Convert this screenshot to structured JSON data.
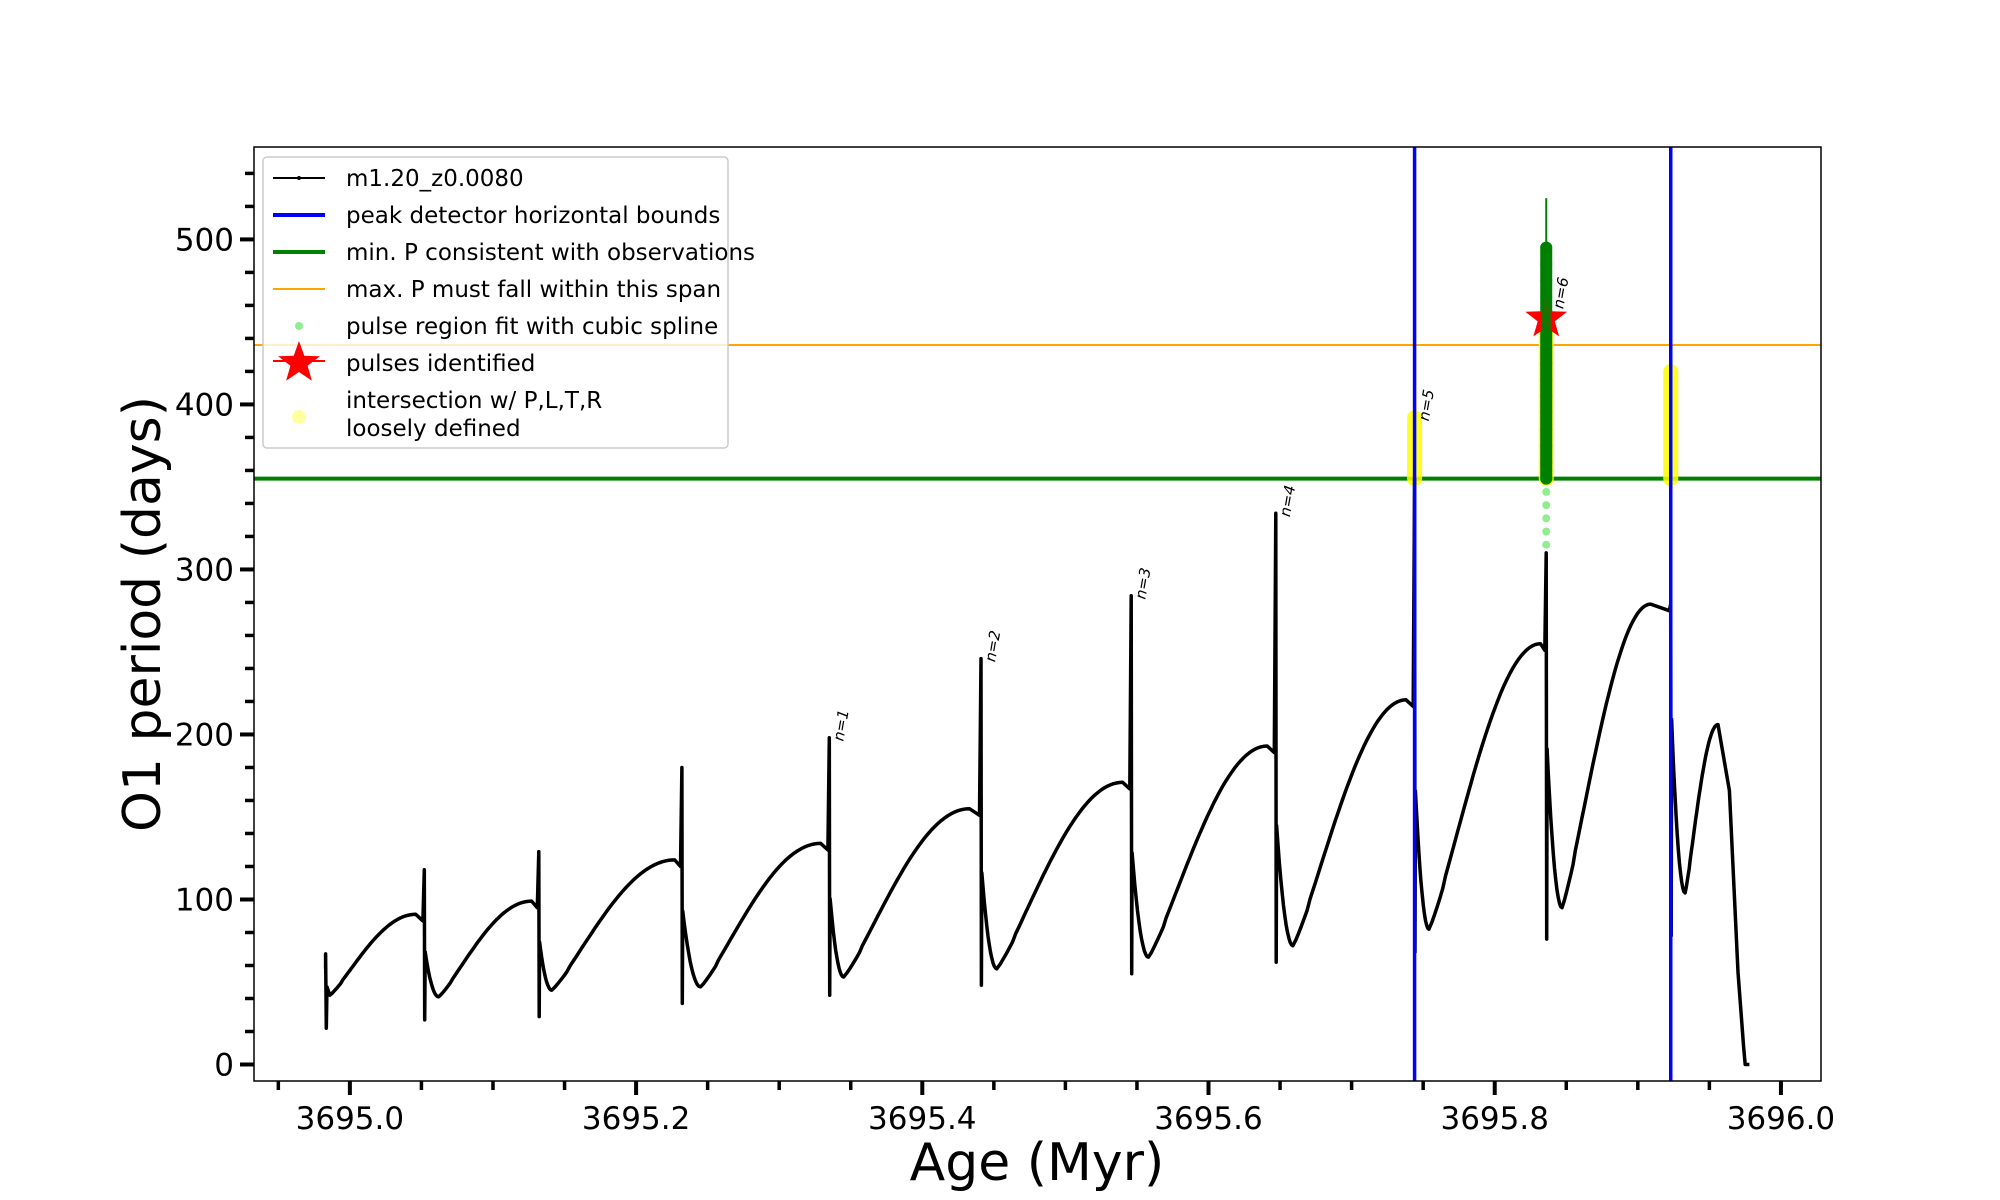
{
  "chart_data": {
    "type": "line",
    "title": "",
    "xlabel": "Age (Myr)",
    "ylabel": "O1 period (days)",
    "xlim": [
      3694.933,
      3696.028
    ],
    "ylim": [
      -10,
      556
    ],
    "xticks": [
      3695.0,
      3695.2,
      3695.4,
      3695.6,
      3695.8,
      3696.0
    ],
    "xtick_labels": [
      "3695.0",
      "3695.2",
      "3695.4",
      "3695.6",
      "3695.8",
      "3696.0"
    ],
    "xminor_step": 0.05,
    "yticks": [
      0,
      100,
      200,
      300,
      400,
      500
    ],
    "ytick_labels": [
      "0",
      "100",
      "200",
      "300",
      "400",
      "500"
    ],
    "yminor_step": 20,
    "grid": false,
    "legend_position": "top-left",
    "legend": [
      {
        "label": "m1.20_z0.0080",
        "kind": "line-dot",
        "color": "#000000"
      },
      {
        "label": "peak detector horizontal bounds",
        "kind": "line",
        "color": "#0000ff"
      },
      {
        "label": "min. P consistent with observations",
        "kind": "line",
        "color": "#008000"
      },
      {
        "label": "max. P must fall within this span",
        "kind": "thin-line",
        "color": "#ffa500"
      },
      {
        "label": "pulse region fit with cubic spline",
        "kind": "dot",
        "color": "#90ee90"
      },
      {
        "label": "pulses identified",
        "kind": "star",
        "color": "#ff0000"
      },
      {
        "label": "intersection w/ P,L,T,R",
        "label2": "loosely defined",
        "kind": "circle",
        "color": "#ffffa0"
      }
    ],
    "series_start": {
      "age": 3694.983,
      "P_start": 58,
      "spike_top": 67,
      "spike_bottom": 22,
      "min_age": 3694.986,
      "min_P": 42
    },
    "cycles": [
      {
        "peak_age": 3695.046,
        "peak_P": 91,
        "spike_age": 3695.052,
        "spike_top": 118,
        "spike_bottom": 27,
        "min_age": 3695.062,
        "min_P": 41
      },
      {
        "peak_age": 3695.127,
        "peak_P": 99,
        "spike_age": 3695.132,
        "spike_top": 129,
        "spike_bottom": 29,
        "min_age": 3695.141,
        "min_P": 45
      },
      {
        "peak_age": 3695.227,
        "peak_P": 124,
        "spike_age": 3695.232,
        "spike_top": 180,
        "spike_bottom": 37,
        "min_age": 3695.245,
        "min_P": 47
      },
      {
        "peak_age": 3695.329,
        "peak_P": 134,
        "spike_age": 3695.335,
        "spike_top": 198,
        "spike_bottom": 42,
        "min_age": 3695.345,
        "min_P": 53
      },
      {
        "peak_age": 3695.433,
        "peak_P": 155,
        "spike_age": 3695.441,
        "spike_top": 246,
        "spike_bottom": 48,
        "min_age": 3695.452,
        "min_P": 58
      },
      {
        "peak_age": 3695.54,
        "peak_P": 171,
        "spike_age": 3695.546,
        "spike_top": 284,
        "spike_bottom": 55,
        "min_age": 3695.558,
        "min_P": 65
      },
      {
        "peak_age": 3695.641,
        "peak_P": 193,
        "spike_age": 3695.647,
        "spike_top": 334,
        "spike_bottom": 62,
        "min_age": 3695.659,
        "min_P": 72
      },
      {
        "peak_age": 3695.738,
        "peak_P": 221,
        "spike_age": 3695.744,
        "spike_top": 355,
        "spike_bottom": 68,
        "min_age": 3695.754,
        "min_P": 82
      },
      {
        "peak_age": 3695.832,
        "peak_P": 255,
        "spike_age": 3695.836,
        "spike_top": 310,
        "spike_bottom": 76,
        "min_age": 3695.847,
        "min_P": 95
      },
      {
        "peak_age": 3695.909,
        "peak_P": 279,
        "spike_age": 3695.923,
        "spike_top": 279,
        "spike_bottom": 78,
        "min_age": 3695.933,
        "min_P": 104
      }
    ],
    "series_end": {
      "peak_age": 3695.956,
      "peak_P": 206,
      "drop_age": 3695.974,
      "end_age": 3695.978,
      "end_P": 0
    },
    "vlines": [
      3695.744,
      3695.923
    ],
    "hline_min_P": 355,
    "hline_max_P": 436,
    "pulse_labels": [
      {
        "text": "n=1",
        "age": 3695.335,
        "P": 198
      },
      {
        "text": "n=2",
        "age": 3695.441,
        "P": 246
      },
      {
        "text": "n=3",
        "age": 3695.546,
        "P": 284
      },
      {
        "text": "n=4",
        "age": 3695.647,
        "P": 334
      },
      {
        "text": "n=5",
        "age": 3695.744,
        "P": 392
      },
      {
        "text": "n=6",
        "age": 3695.838,
        "P": 460
      }
    ],
    "spline_region": {
      "age": 3695.836,
      "P_low": 315,
      "P_dense_low": 355,
      "P_high": 495,
      "P_line_top": 525
    },
    "pulse_star": {
      "age": 3695.836,
      "P": 452
    },
    "intersections": [
      {
        "age": 3695.744,
        "P_low": 355,
        "P_high": 392
      },
      {
        "age": 3695.836,
        "P_low": 355,
        "P_high": 450
      },
      {
        "age": 3695.923,
        "P_low": 355,
        "P_high": 420
      }
    ]
  }
}
